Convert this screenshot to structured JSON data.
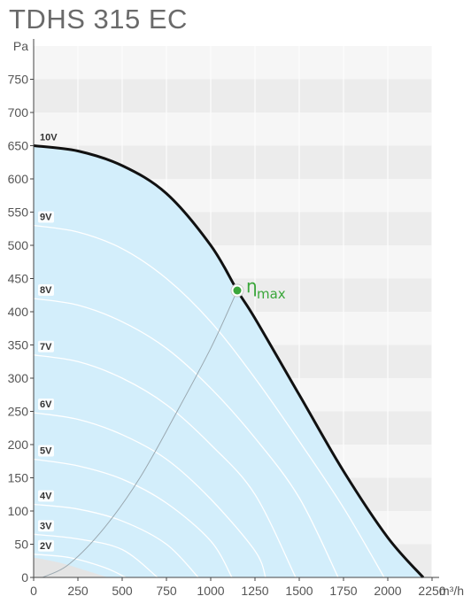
{
  "title": "TDHS 315 EC",
  "chart_data": {
    "type": "line",
    "title": "TDHS 315 EC",
    "xlabel": "m³/h",
    "ylabel": "Pa",
    "xlim": [
      0,
      2250
    ],
    "ylim": [
      0,
      800
    ],
    "x_ticks": [
      "0",
      "250",
      "500",
      "750",
      "1000",
      "1250",
      "1500",
      "1750",
      "2000",
      "2250"
    ],
    "y_ticks": [
      "0",
      "50",
      "100",
      "150",
      "200",
      "250",
      "300",
      "350",
      "400",
      "450",
      "500",
      "550",
      "600",
      "650",
      "700",
      "750"
    ],
    "max_curve": {
      "name": "10V",
      "points": [
        [
          0,
          650
        ],
        [
          250,
          642
        ],
        [
          500,
          620
        ],
        [
          750,
          578
        ],
        [
          1000,
          500
        ],
        [
          1150,
          432
        ],
        [
          1250,
          390
        ],
        [
          1500,
          275
        ],
        [
          1750,
          160
        ],
        [
          2000,
          60
        ],
        [
          2200,
          0
        ]
      ]
    },
    "voltage_curves": [
      {
        "name": "9V",
        "points": [
          [
            0,
            530
          ],
          [
            250,
            520
          ],
          [
            500,
            495
          ],
          [
            750,
            450
          ],
          [
            1000,
            385
          ],
          [
            1250,
            300
          ],
          [
            1500,
            205
          ],
          [
            1750,
            105
          ],
          [
            1980,
            0
          ]
        ]
      },
      {
        "name": "8V",
        "points": [
          [
            0,
            420
          ],
          [
            250,
            410
          ],
          [
            500,
            385
          ],
          [
            750,
            345
          ],
          [
            1000,
            285
          ],
          [
            1250,
            210
          ],
          [
            1500,
            120
          ],
          [
            1720,
            0
          ]
        ]
      },
      {
        "name": "7V",
        "points": [
          [
            0,
            335
          ],
          [
            250,
            325
          ],
          [
            500,
            300
          ],
          [
            750,
            260
          ],
          [
            1000,
            200
          ],
          [
            1250,
            125
          ],
          [
            1480,
            0
          ]
        ]
      },
      {
        "name": "6V",
        "points": [
          [
            0,
            248
          ],
          [
            250,
            238
          ],
          [
            500,
            215
          ],
          [
            750,
            178
          ],
          [
            1000,
            118
          ],
          [
            1250,
            40
          ],
          [
            1310,
            0
          ]
        ]
      },
      {
        "name": "5V",
        "points": [
          [
            0,
            178
          ],
          [
            250,
            168
          ],
          [
            500,
            148
          ],
          [
            750,
            112
          ],
          [
            1000,
            55
          ],
          [
            1120,
            0
          ]
        ]
      },
      {
        "name": "4V",
        "points": [
          [
            0,
            110
          ],
          [
            250,
            103
          ],
          [
            500,
            85
          ],
          [
            750,
            50
          ],
          [
            930,
            0
          ]
        ]
      },
      {
        "name": "3V",
        "points": [
          [
            0,
            65
          ],
          [
            250,
            58
          ],
          [
            500,
            42
          ],
          [
            700,
            0
          ]
        ]
      },
      {
        "name": "2V",
        "points": [
          [
            0,
            35
          ],
          [
            200,
            30
          ],
          [
            400,
            15
          ],
          [
            520,
            0
          ]
        ]
      }
    ],
    "efficiency_curve": {
      "name": "ηmax",
      "points": [
        [
          50,
          0
        ],
        [
          200,
          20
        ],
        [
          400,
          75
        ],
        [
          600,
          150
        ],
        [
          800,
          245
        ],
        [
          1000,
          345
        ],
        [
          1150,
          432
        ]
      ]
    },
    "eta_max_point": {
      "x": 1150,
      "y": 432,
      "label": "η",
      "subscript": "max"
    },
    "low_region_points": [
      [
        0,
        30
      ],
      [
        150,
        22
      ],
      [
        300,
        10
      ],
      [
        420,
        0
      ]
    ],
    "grid": true,
    "colors": {
      "fill": "#d3eefb",
      "max_curve": "#111111",
      "voltage_curves": "#ffffff",
      "efficiency_curve": "#9aa8b0",
      "eta": "#3aa63a",
      "band_dark": "#ececec",
      "band_light": "#f6f6f6"
    }
  }
}
